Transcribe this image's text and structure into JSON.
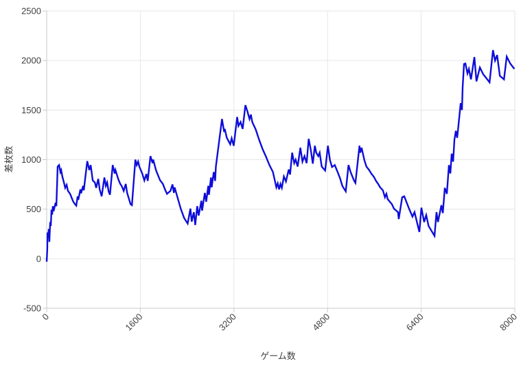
{
  "chart_data": {
    "type": "line",
    "title": "",
    "xlabel": "ゲーム数",
    "ylabel": "差枚数",
    "x_ticks": [
      0,
      1600,
      3200,
      4800,
      6400,
      8000
    ],
    "y_ticks": [
      2500,
      2000,
      1500,
      1000,
      500,
      0,
      -500
    ],
    "xlim": [
      0,
      8000
    ],
    "ylim": [
      -500,
      2500
    ],
    "grid": true,
    "legend": "none",
    "colors": {
      "line": "#0d0dd9",
      "grid": "#e6e6e6",
      "axis": "#c9c9c9",
      "label": "#3f3f3f",
      "background": "#ffffff"
    },
    "series": [
      {
        "name": "差枚数",
        "points": [
          [
            0,
            -30
          ],
          [
            10,
            100
          ],
          [
            14,
            265
          ],
          [
            25,
            210
          ],
          [
            35,
            300
          ],
          [
            46,
            170
          ],
          [
            60,
            370
          ],
          [
            70,
            330
          ],
          [
            82,
            495
          ],
          [
            94,
            445
          ],
          [
            106,
            530
          ],
          [
            118,
            480
          ],
          [
            152,
            565
          ],
          [
            165,
            530
          ],
          [
            188,
            930
          ],
          [
            212,
            945
          ],
          [
            235,
            875
          ],
          [
            247,
            895
          ],
          [
            270,
            825
          ],
          [
            294,
            770
          ],
          [
            317,
            715
          ],
          [
            341,
            745
          ],
          [
            364,
            685
          ],
          [
            400,
            655
          ],
          [
            423,
            620
          ],
          [
            447,
            585
          ],
          [
            470,
            560
          ],
          [
            505,
            535
          ],
          [
            529,
            630
          ],
          [
            541,
            595
          ],
          [
            576,
            700
          ],
          [
            588,
            660
          ],
          [
            623,
            735
          ],
          [
            635,
            690
          ],
          [
            693,
            985
          ],
          [
            729,
            895
          ],
          [
            752,
            945
          ],
          [
            787,
            790
          ],
          [
            823,
            770
          ],
          [
            846,
            715
          ],
          [
            881,
            805
          ],
          [
            905,
            700
          ],
          [
            940,
            630
          ],
          [
            987,
            820
          ],
          [
            1011,
            735
          ],
          [
            1034,
            770
          ],
          [
            1058,
            680
          ],
          [
            1081,
            645
          ],
          [
            1128,
            945
          ],
          [
            1163,
            860
          ],
          [
            1175,
            895
          ],
          [
            1222,
            805
          ],
          [
            1257,
            755
          ],
          [
            1281,
            735
          ],
          [
            1316,
            685
          ],
          [
            1351,
            755
          ],
          [
            1375,
            665
          ],
          [
            1434,
            550
          ],
          [
            1457,
            540
          ],
          [
            1516,
            1000
          ],
          [
            1539,
            945
          ],
          [
            1563,
            980
          ],
          [
            1586,
            925
          ],
          [
            1633,
            860
          ],
          [
            1669,
            790
          ],
          [
            1704,
            855
          ],
          [
            1727,
            785
          ],
          [
            1774,
            1035
          ],
          [
            1810,
            965
          ],
          [
            1821,
            1000
          ],
          [
            1868,
            895
          ],
          [
            1904,
            840
          ],
          [
            1939,
            790
          ],
          [
            1986,
            755
          ],
          [
            2021,
            700
          ],
          [
            2056,
            655
          ],
          [
            2115,
            685
          ],
          [
            2150,
            750
          ],
          [
            2174,
            665
          ],
          [
            2186,
            720
          ],
          [
            2291,
            505
          ],
          [
            2350,
            410
          ],
          [
            2409,
            355
          ],
          [
            2456,
            505
          ],
          [
            2479,
            375
          ],
          [
            2515,
            470
          ],
          [
            2538,
            340
          ],
          [
            2573,
            530
          ],
          [
            2597,
            435
          ],
          [
            2644,
            585
          ],
          [
            2656,
            485
          ],
          [
            2703,
            665
          ],
          [
            2726,
            575
          ],
          [
            2761,
            735
          ],
          [
            2773,
            645
          ],
          [
            2808,
            820
          ],
          [
            2820,
            720
          ],
          [
            2855,
            875
          ],
          [
            2879,
            785
          ],
          [
            2891,
            930
          ],
          [
            2996,
            1410
          ],
          [
            3032,
            1280
          ],
          [
            3043,
            1310
          ],
          [
            3078,
            1220
          ],
          [
            3137,
            1155
          ],
          [
            3161,
            1215
          ],
          [
            3196,
            1140
          ],
          [
            3255,
            1430
          ],
          [
            3278,
            1340
          ],
          [
            3314,
            1380
          ],
          [
            3349,
            1310
          ],
          [
            3396,
            1550
          ],
          [
            3431,
            1485
          ],
          [
            3466,
            1410
          ],
          [
            3490,
            1455
          ],
          [
            3513,
            1380
          ],
          [
            3572,
            1305
          ],
          [
            3631,
            1200
          ],
          [
            3690,
            1105
          ],
          [
            3748,
            1030
          ],
          [
            3807,
            945
          ],
          [
            3866,
            875
          ],
          [
            3925,
            720
          ],
          [
            3948,
            760
          ],
          [
            3972,
            700
          ],
          [
            3995,
            755
          ],
          [
            4019,
            715
          ],
          [
            4054,
            830
          ],
          [
            4089,
            780
          ],
          [
            4136,
            900
          ],
          [
            4160,
            850
          ],
          [
            4195,
            1070
          ],
          [
            4230,
            965
          ],
          [
            4254,
            1000
          ],
          [
            4289,
            930
          ],
          [
            4336,
            1120
          ],
          [
            4371,
            980
          ],
          [
            4406,
            1035
          ],
          [
            4442,
            965
          ],
          [
            4477,
            1210
          ],
          [
            4512,
            1105
          ],
          [
            4548,
            960
          ],
          [
            4583,
            1140
          ],
          [
            4606,
            1070
          ],
          [
            4642,
            1035
          ],
          [
            4665,
            1070
          ],
          [
            4700,
            930
          ],
          [
            4759,
            890
          ],
          [
            4806,
            1140
          ],
          [
            4841,
            995
          ],
          [
            4876,
            925
          ],
          [
            4923,
            945
          ],
          [
            4982,
            860
          ],
          [
            5017,
            805
          ],
          [
            5052,
            735
          ],
          [
            5111,
            680
          ],
          [
            5158,
            945
          ],
          [
            5193,
            875
          ],
          [
            5252,
            790
          ],
          [
            5276,
            765
          ],
          [
            5346,
            1140
          ],
          [
            5358,
            1070
          ],
          [
            5382,
            1120
          ],
          [
            5429,
            995
          ],
          [
            5464,
            930
          ],
          [
            5511,
            895
          ],
          [
            5546,
            860
          ],
          [
            5593,
            825
          ],
          [
            5628,
            785
          ],
          [
            5664,
            755
          ],
          [
            5699,
            720
          ],
          [
            5746,
            690
          ],
          [
            5781,
            620
          ],
          [
            5805,
            655
          ],
          [
            5828,
            600
          ],
          [
            5899,
            550
          ],
          [
            5934,
            505
          ],
          [
            6004,
            470
          ],
          [
            6016,
            400
          ],
          [
            6075,
            620
          ],
          [
            6110,
            630
          ],
          [
            6192,
            505
          ],
          [
            6251,
            425
          ],
          [
            6286,
            470
          ],
          [
            6368,
            270
          ],
          [
            6404,
            515
          ],
          [
            6451,
            370
          ],
          [
            6486,
            440
          ],
          [
            6527,
            330
          ],
          [
            6627,
            230
          ],
          [
            6662,
            470
          ],
          [
            6686,
            370
          ],
          [
            6745,
            540
          ],
          [
            6769,
            460
          ],
          [
            6804,
            715
          ],
          [
            6839,
            655
          ],
          [
            6874,
            945
          ],
          [
            6898,
            860
          ],
          [
            6921,
            1060
          ],
          [
            6945,
            980
          ],
          [
            6968,
            1200
          ],
          [
            6992,
            1290
          ],
          [
            7015,
            1220
          ],
          [
            7039,
            1360
          ],
          [
            7074,
            1570
          ],
          [
            7097,
            1500
          ],
          [
            7109,
            1730
          ],
          [
            7132,
            1965
          ],
          [
            7156,
            1970
          ],
          [
            7191,
            1870
          ],
          [
            7215,
            1915
          ],
          [
            7250,
            1810
          ],
          [
            7309,
            2035
          ],
          [
            7344,
            1790
          ],
          [
            7403,
            1930
          ],
          [
            7462,
            1860
          ],
          [
            7509,
            1825
          ],
          [
            7568,
            1780
          ],
          [
            7627,
            2105
          ],
          [
            7662,
            2000
          ],
          [
            7697,
            2055
          ],
          [
            7744,
            1845
          ],
          [
            7815,
            1810
          ],
          [
            7862,
            2040
          ],
          [
            7921,
            1970
          ],
          [
            7992,
            1915
          ]
        ]
      }
    ]
  }
}
